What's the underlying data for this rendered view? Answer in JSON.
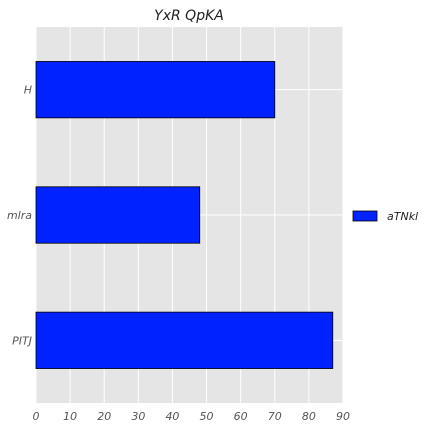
{
  "chart_data": {
    "type": "bar",
    "orientation": "horizontal",
    "title": "YxR QpKA",
    "xlabel": "",
    "ylabel": "",
    "categories": [
      "H",
      "mlra",
      "PITJ"
    ],
    "series": [
      {
        "name": "aTNkl",
        "values": [
          70,
          48,
          87
        ],
        "color": "#0022ff"
      }
    ],
    "xlim": [
      0,
      90
    ],
    "xticks": [
      "0",
      "10",
      "20",
      "30",
      "40",
      "50",
      "60",
      "70",
      "80",
      "90"
    ],
    "grid": true,
    "legend_position": "right"
  },
  "colors": {
    "plot_background": "#e5e5e5",
    "grid": "#ffffff",
    "bar_fill": "#0022ff",
    "bar_edge": "#000000"
  }
}
